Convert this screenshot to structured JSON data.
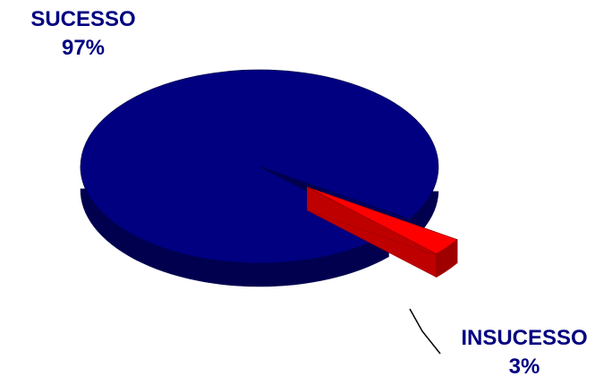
{
  "chart_data": {
    "type": "pie",
    "title": "",
    "categories": [
      "SUCESSO",
      "INSUCESSO"
    ],
    "values": [
      97,
      3
    ],
    "value_labels": [
      "97%",
      "3%"
    ],
    "colors": [
      "#000080",
      "#ff0000"
    ],
    "exploded": [
      false,
      true
    ],
    "style": "3d",
    "legend": "none"
  }
}
